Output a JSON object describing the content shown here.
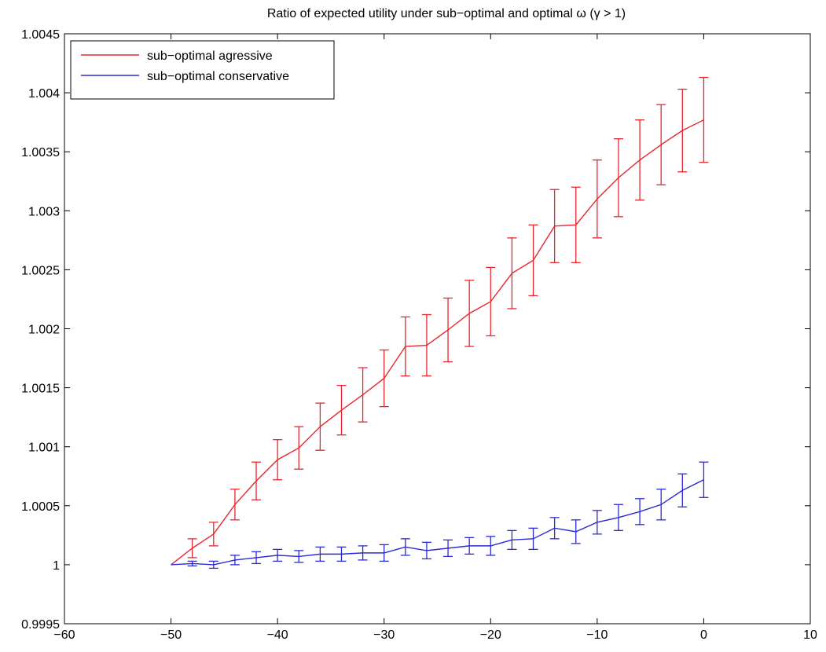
{
  "chart_data": {
    "type": "line",
    "title": "Ratio of expected utility under sub−optimal and optimal ω (γ > 1)",
    "xlabel": "",
    "ylabel": "",
    "xlim": [
      -60,
      10
    ],
    "ylim": [
      0.9995,
      1.0045
    ],
    "xticks": [
      -60,
      -50,
      -40,
      -30,
      -20,
      -10,
      0,
      10
    ],
    "xtick_labels": [
      "−60",
      "−50",
      "−40",
      "−30",
      "−20",
      "−10",
      "0",
      "10"
    ],
    "yticks": [
      0.9995,
      1,
      1.0005,
      1.001,
      1.0015,
      1.002,
      1.0025,
      1.003,
      1.0035,
      1.004,
      1.0045
    ],
    "ytick_labels": [
      "0.9995",
      "1",
      "1.0005",
      "1.001",
      "1.0015",
      "1.002",
      "1.0025",
      "1.003",
      "1.0035",
      "1.004",
      "1.0045"
    ],
    "grid": false,
    "legend_position": "top-left",
    "x": [
      -50,
      -48,
      -46,
      -44,
      -42,
      -40,
      -38,
      -36,
      -34,
      -32,
      -30,
      -28,
      -26,
      -24,
      -22,
      -20,
      -18,
      -16,
      -14,
      -12,
      -10,
      -8,
      -6,
      -4,
      -2,
      0
    ],
    "series": [
      {
        "name": "sub−optimal agressive",
        "color": "#e8262f",
        "y": [
          1.0,
          1.00014,
          1.00026,
          1.00051,
          1.00071,
          1.00089,
          1.00099,
          1.00117,
          1.00131,
          1.00144,
          1.00158,
          1.00185,
          1.00186,
          1.00199,
          1.00213,
          1.00223,
          1.00247,
          1.00258,
          1.00287,
          1.00288,
          1.0031,
          1.00328,
          1.00343,
          1.00356,
          1.00368,
          1.00377
        ],
        "err": [
          null,
          8e-05,
          0.0001,
          0.00013,
          0.00016,
          0.00017,
          0.00018,
          0.0002,
          0.00021,
          0.00023,
          0.00024,
          0.00025,
          0.00026,
          0.00027,
          0.00028,
          0.00029,
          0.0003,
          0.0003,
          0.00031,
          0.00032,
          0.00033,
          0.00033,
          0.00034,
          0.00034,
          0.00035,
          0.00036
        ]
      },
      {
        "name": "sub−optimal conservative",
        "color": "#2b2bd6",
        "y": [
          1.0,
          1.00001,
          1.0,
          1.00004,
          1.00006,
          1.00008,
          1.00007,
          1.00009,
          1.00009,
          1.0001,
          1.0001,
          1.00015,
          1.00012,
          1.00014,
          1.00016,
          1.00016,
          1.00021,
          1.00022,
          1.00031,
          1.00028,
          1.00036,
          1.0004,
          1.00045,
          1.00051,
          1.00063,
          1.00072
        ],
        "err": [
          null,
          2e-05,
          3e-05,
          4e-05,
          5e-05,
          5e-05,
          5e-05,
          6e-05,
          6e-05,
          6e-05,
          7e-05,
          7e-05,
          7e-05,
          7e-05,
          7e-05,
          8e-05,
          8e-05,
          9e-05,
          9e-05,
          0.0001,
          0.0001,
          0.00011,
          0.00011,
          0.00013,
          0.00014,
          0.00015
        ]
      }
    ]
  }
}
